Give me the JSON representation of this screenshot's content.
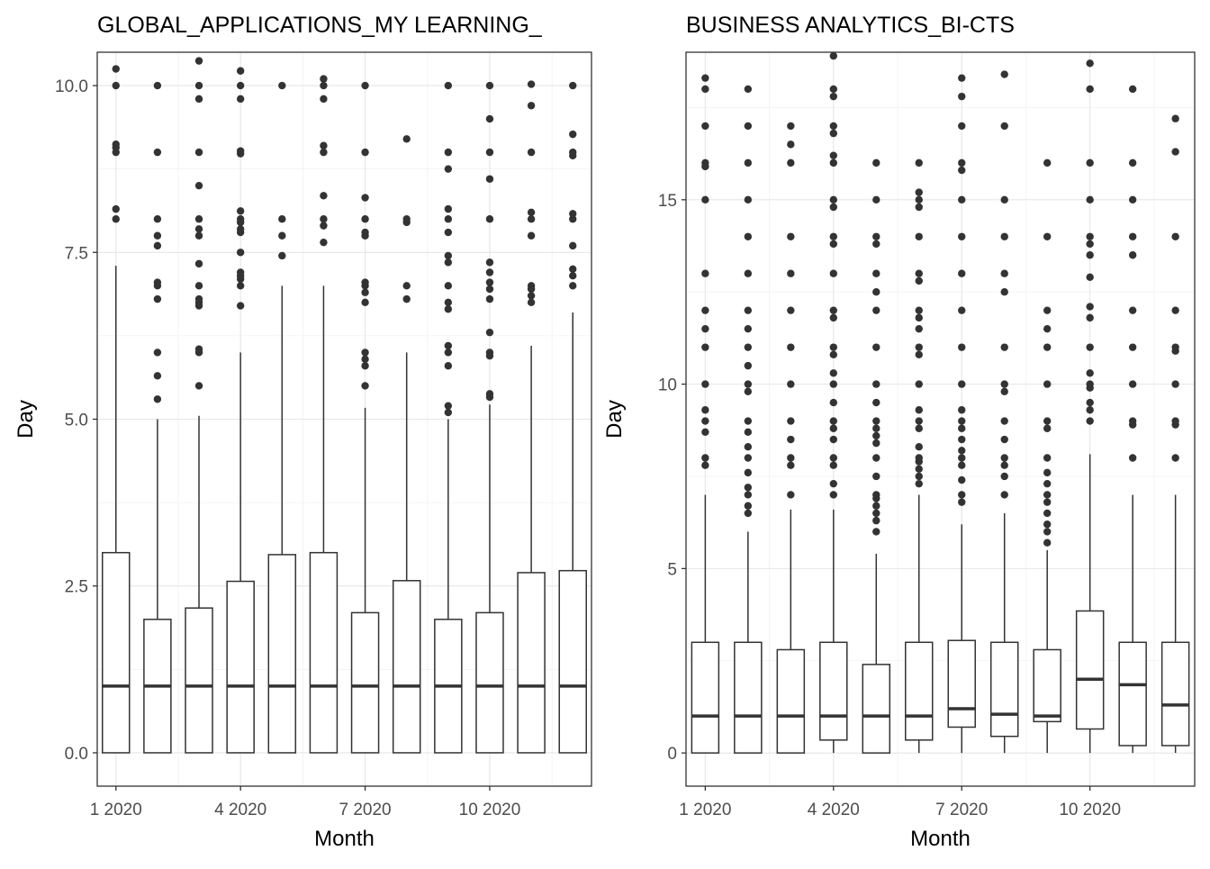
{
  "chart_data": [
    {
      "type": "box",
      "title": "GLOBAL_APPLICATIONS_MY LEARNING_",
      "xlabel": "Month",
      "ylabel": "Day",
      "ylim": [
        -0.5,
        10.5
      ],
      "yticks": [
        0,
        2.5,
        5,
        7.5,
        10
      ],
      "ytick_labels": [
        "0.0",
        "2.5",
        "5.0",
        "7.5",
        "10.0"
      ],
      "xlim": [
        0.55,
        12.45
      ],
      "xticks": [
        1,
        4,
        7,
        10
      ],
      "xtick_labels": [
        "1 2020",
        "4 2020",
        "7 2020",
        "10 2020"
      ],
      "grid": true,
      "boxes": [
        {
          "month": 1,
          "q1": 0,
          "median": 1,
          "q3": 3,
          "whisker_low": 0,
          "whisker_high": 7.3,
          "outliers": [
            8.0,
            8.15,
            9.0,
            9.07,
            9.12,
            10.0,
            10.25
          ]
        },
        {
          "month": 2,
          "q1": 0,
          "median": 1,
          "q3": 2,
          "whisker_low": 0,
          "whisker_high": 5.0,
          "outliers": [
            5.3,
            5.65,
            6.0,
            6.8,
            7.0,
            7.05,
            7.6,
            7.75,
            8.0,
            9.0,
            10.0
          ]
        },
        {
          "month": 3,
          "q1": 0,
          "median": 1,
          "q3": 2.17,
          "whisker_low": 0,
          "whisker_high": 5.05,
          "outliers": [
            5.5,
            6.0,
            6.05,
            6.7,
            6.75,
            6.8,
            7.0,
            7.33,
            7.75,
            7.85,
            8.0,
            8.5,
            9.0,
            9.8,
            10.0,
            10.37
          ]
        },
        {
          "month": 4,
          "q1": 0,
          "median": 1,
          "q3": 2.57,
          "whisker_low": 0,
          "whisker_high": 6.0,
          "outliers": [
            6.7,
            7.0,
            7.1,
            7.15,
            7.2,
            7.5,
            7.8,
            7.85,
            7.95,
            8.0,
            8.12,
            8.98,
            9.02,
            9.8,
            10.0,
            10.22
          ]
        },
        {
          "month": 5,
          "q1": 0,
          "median": 1,
          "q3": 2.97,
          "whisker_low": 0,
          "whisker_high": 7.0,
          "outliers": [
            7.45,
            7.75,
            8.0,
            10.0
          ]
        },
        {
          "month": 6,
          "q1": 0,
          "median": 1,
          "q3": 3,
          "whisker_low": 0,
          "whisker_high": 7.0,
          "outliers": [
            7.65,
            7.9,
            8.0,
            8.35,
            9.0,
            9.1,
            9.8,
            10.0,
            10.1
          ]
        },
        {
          "month": 7,
          "q1": 0,
          "median": 1,
          "q3": 2.1,
          "whisker_low": 0,
          "whisker_high": 5.17,
          "outliers": [
            5.5,
            5.8,
            5.9,
            6.0,
            6.75,
            6.9,
            7.0,
            7.05,
            7.75,
            7.8,
            8.0,
            8.32,
            9.0,
            10.0
          ]
        },
        {
          "month": 8,
          "q1": 0,
          "median": 1,
          "q3": 2.58,
          "whisker_low": 0,
          "whisker_high": 6.0,
          "outliers": [
            6.8,
            7.0,
            7.95,
            8.0,
            9.2
          ]
        },
        {
          "month": 9,
          "q1": 0,
          "median": 1,
          "q3": 2,
          "whisker_low": 0,
          "whisker_high": 5.0,
          "outliers": [
            5.1,
            5.2,
            5.8,
            6.0,
            6.1,
            6.65,
            6.75,
            7.0,
            7.35,
            7.45,
            7.8,
            8.0,
            8.15,
            8.75,
            9.0,
            10.0
          ]
        },
        {
          "month": 10,
          "q1": 0,
          "median": 1,
          "q3": 2.1,
          "whisker_low": 0,
          "whisker_high": 5.22,
          "outliers": [
            5.33,
            5.38,
            5.95,
            6.0,
            6.3,
            6.8,
            6.95,
            7.05,
            7.2,
            7.35,
            8.0,
            8.6,
            9.0,
            9.5,
            10.0
          ]
        },
        {
          "month": 11,
          "q1": 0,
          "median": 1,
          "q3": 2.7,
          "whisker_low": 0,
          "whisker_high": 6.1,
          "outliers": [
            6.75,
            6.85,
            6.95,
            7.0,
            7.75,
            8.0,
            8.1,
            9.0,
            9.7,
            10.02
          ]
        },
        {
          "month": 12,
          "q1": 0,
          "median": 1,
          "q3": 2.73,
          "whisker_low": 0,
          "whisker_high": 6.6,
          "outliers": [
            7.0,
            7.15,
            7.25,
            7.6,
            8.0,
            8.08,
            8.95,
            9.0,
            9.27,
            10.0
          ]
        }
      ]
    },
    {
      "type": "box",
      "title": "BUSINESS ANALYTICS_BI-CTS",
      "xlabel": "Month",
      "ylabel": "Day",
      "ylim": [
        -0.9,
        19.0
      ],
      "yticks": [
        0,
        5,
        10,
        15
      ],
      "ytick_labels": [
        "0",
        "5",
        "10",
        "15"
      ],
      "xlim": [
        0.55,
        12.45
      ],
      "xticks": [
        1,
        4,
        7,
        10
      ],
      "xtick_labels": [
        "1 2020",
        "4 2020",
        "7 2020",
        "10 2020"
      ],
      "grid": true,
      "boxes": [
        {
          "month": 1,
          "q1": 0,
          "median": 1,
          "q3": 3,
          "whisker_low": 0,
          "whisker_high": 7.0,
          "outliers": [
            7.8,
            8.0,
            8.7,
            9.0,
            9.3,
            10.0,
            11.0,
            11.5,
            12.0,
            13.0,
            15.0,
            15.9,
            16.0,
            17.0,
            18.0,
            18.3
          ]
        },
        {
          "month": 2,
          "q1": 0,
          "median": 1,
          "q3": 3,
          "whisker_low": 0,
          "whisker_high": 6.0,
          "outliers": [
            6.5,
            6.7,
            7.0,
            7.2,
            7.6,
            8.0,
            8.3,
            8.7,
            9.0,
            9.8,
            10.0,
            10.5,
            11.0,
            11.5,
            12.0,
            13.0,
            14.0,
            15.0,
            16.0,
            17.0,
            18.0
          ]
        },
        {
          "month": 3,
          "q1": 0,
          "median": 1,
          "q3": 2.8,
          "whisker_low": 0,
          "whisker_high": 6.6,
          "outliers": [
            7.0,
            7.8,
            8.0,
            8.5,
            9.0,
            10.0,
            11.0,
            12.0,
            13.0,
            14.0,
            16.0,
            16.5,
            17.0
          ]
        },
        {
          "month": 4,
          "q1": 0.35,
          "median": 1,
          "q3": 3,
          "whisker_low": 0,
          "whisker_high": 6.6,
          "outliers": [
            7.0,
            7.3,
            7.8,
            8.0,
            8.5,
            8.8,
            9.0,
            9.5,
            10.0,
            10.3,
            10.8,
            11.0,
            11.8,
            12.0,
            13.0,
            13.8,
            14.0,
            14.8,
            15.0,
            16.0,
            16.2,
            16.8,
            17.0,
            17.8,
            18.0,
            18.9
          ]
        },
        {
          "month": 5,
          "q1": 0,
          "median": 1,
          "q3": 2.4,
          "whisker_low": 0,
          "whisker_high": 5.4,
          "outliers": [
            6.0,
            6.3,
            6.5,
            6.7,
            6.9,
            7.0,
            7.5,
            8.0,
            8.4,
            8.6,
            8.8,
            9.0,
            9.5,
            10.0,
            11.0,
            12.0,
            12.5,
            13.0,
            13.8,
            14.0,
            15.0,
            16.0
          ]
        },
        {
          "month": 6,
          "q1": 0.35,
          "median": 1,
          "q3": 3,
          "whisker_low": 0,
          "whisker_high": 7.0,
          "outliers": [
            7.3,
            7.5,
            7.7,
            7.9,
            8.0,
            8.3,
            8.8,
            9.0,
            9.3,
            10.0,
            10.8,
            11.0,
            11.5,
            11.8,
            12.0,
            12.8,
            13.0,
            14.0,
            14.8,
            15.0,
            15.2,
            16.0
          ]
        },
        {
          "month": 7,
          "q1": 0.7,
          "median": 1.2,
          "q3": 3.05,
          "whisker_low": 0,
          "whisker_high": 6.2,
          "outliers": [
            6.8,
            7.0,
            7.4,
            7.8,
            8.0,
            8.2,
            8.5,
            8.8,
            9.0,
            9.3,
            10.0,
            11.0,
            12.0,
            13.0,
            14.0,
            15.0,
            15.8,
            16.0,
            17.0,
            17.8,
            18.3
          ]
        },
        {
          "month": 8,
          "q1": 0.45,
          "median": 1.05,
          "q3": 3,
          "whisker_low": 0,
          "whisker_high": 6.5,
          "outliers": [
            7.0,
            7.5,
            7.8,
            8.0,
            8.5,
            9.0,
            9.8,
            10.0,
            11.0,
            12.5,
            13.0,
            14.0,
            15.0,
            17.0,
            18.4
          ]
        },
        {
          "month": 9,
          "q1": 0.85,
          "median": 1,
          "q3": 2.8,
          "whisker_low": 0,
          "whisker_high": 5.5,
          "outliers": [
            5.7,
            6.0,
            6.2,
            6.5,
            6.8,
            7.0,
            7.3,
            7.6,
            8.0,
            8.8,
            9.0,
            10.0,
            11.0,
            11.5,
            12.0,
            14.0,
            16.0
          ]
        },
        {
          "month": 10,
          "q1": 0.65,
          "median": 2,
          "q3": 3.85,
          "whisker_low": 0,
          "whisker_high": 8.1,
          "outliers": [
            9.0,
            9.3,
            9.5,
            9.9,
            10.0,
            10.3,
            11.0,
            11.8,
            12.1,
            12.9,
            13.5,
            13.8,
            14.0,
            15.0,
            16.0,
            18.0,
            18.7
          ]
        },
        {
          "month": 11,
          "q1": 0.2,
          "median": 1.85,
          "q3": 3,
          "whisker_low": 0,
          "whisker_high": 7.0,
          "outliers": [
            8.0,
            8.9,
            9.0,
            10.0,
            11.0,
            12.0,
            13.5,
            14.0,
            15.0,
            16.0,
            18.0
          ]
        },
        {
          "month": 12,
          "q1": 0.2,
          "median": 1.3,
          "q3": 3,
          "whisker_low": 0,
          "whisker_high": 7.0,
          "outliers": [
            8.0,
            8.9,
            9.0,
            10.0,
            10.9,
            11.0,
            12.0,
            14.0,
            16.3,
            17.2
          ]
        }
      ]
    }
  ]
}
